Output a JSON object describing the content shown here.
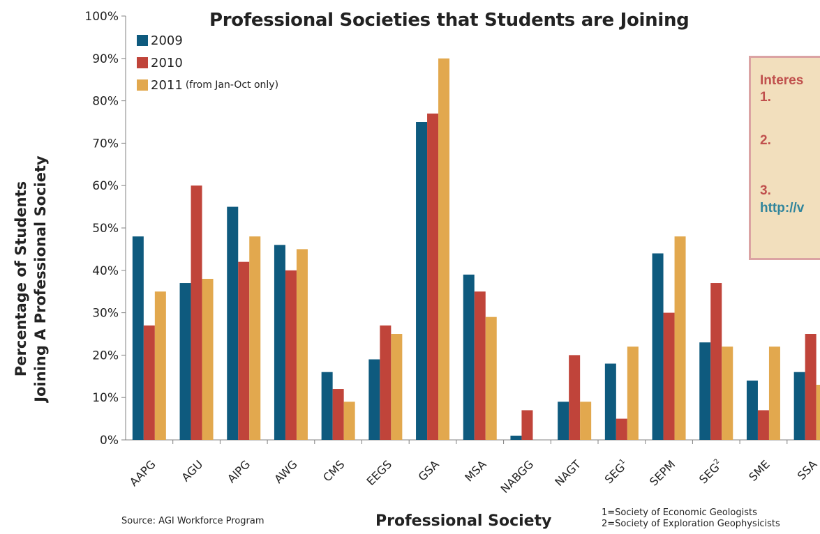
{
  "chart_data": {
    "type": "bar",
    "title": "Professional Societies that Students are Joining",
    "ylabel_lines": [
      "Percentage of Students",
      "Joining A Professional Society"
    ],
    "xlabel": "Professional Society",
    "ylim": [
      0,
      1
    ],
    "yticks": [
      "0%",
      "10%",
      "20%",
      "30%",
      "40%",
      "50%",
      "60%",
      "70%",
      "80%",
      "90%",
      "100%"
    ],
    "categories": [
      "AAPG",
      "AGU",
      "AIPG",
      "AWG",
      "CMS",
      "EEGS",
      "GSA",
      "MSA",
      "NABGG",
      "NAGT",
      "SEG1",
      "SEPM",
      "SEG2",
      "SME",
      "SSA"
    ],
    "category_labels": [
      {
        "base": "AAPG",
        "sup": ""
      },
      {
        "base": "AGU",
        "sup": ""
      },
      {
        "base": "AIPG",
        "sup": ""
      },
      {
        "base": "AWG",
        "sup": ""
      },
      {
        "base": "CMS",
        "sup": ""
      },
      {
        "base": "EEGS",
        "sup": ""
      },
      {
        "base": "GSA",
        "sup": ""
      },
      {
        "base": "MSA",
        "sup": ""
      },
      {
        "base": "NABGG",
        "sup": ""
      },
      {
        "base": "NAGT",
        "sup": ""
      },
      {
        "base": "SEG",
        "sup": "1"
      },
      {
        "base": "SEPM",
        "sup": ""
      },
      {
        "base": "SEG",
        "sup": "2"
      },
      {
        "base": "SME",
        "sup": ""
      },
      {
        "base": "SSA",
        "sup": ""
      }
    ],
    "series": [
      {
        "name": "2009",
        "color": "#0e5a7e",
        "values": [
          0.48,
          0.37,
          0.55,
          0.46,
          0.16,
          0.19,
          0.75,
          0.39,
          0.01,
          0.09,
          0.18,
          0.44,
          0.23,
          0.14,
          0.16
        ]
      },
      {
        "name": "2010",
        "color": "#c0443a",
        "values": [
          0.27,
          0.6,
          0.42,
          0.4,
          0.12,
          0.27,
          0.77,
          0.35,
          0.07,
          0.2,
          0.05,
          0.3,
          0.37,
          0.07,
          0.25
        ]
      },
      {
        "name": "2011",
        "color": "#e2a84e",
        "values": [
          0.35,
          0.38,
          0.48,
          0.45,
          0.09,
          0.25,
          0.9,
          0.29,
          0.0,
          0.09,
          0.22,
          0.48,
          0.22,
          0.22,
          0.13
        ]
      }
    ],
    "legend": {
      "placement": "top-left",
      "items": [
        {
          "label": "2009",
          "note": ""
        },
        {
          "label": "2010",
          "note": ""
        },
        {
          "label": "2011",
          "note": "(from Jan-Oct only)"
        }
      ]
    },
    "grid": false
  },
  "source": "Source: AGI Workforce Program",
  "footnotes": [
    "1=Society of Economic Geologists",
    "2=Society of Exploration Geophysicists"
  ],
  "callout": {
    "title": "Interes",
    "item1": "1.",
    "item2": "2.",
    "item3": "3.",
    "link": "http://v"
  }
}
